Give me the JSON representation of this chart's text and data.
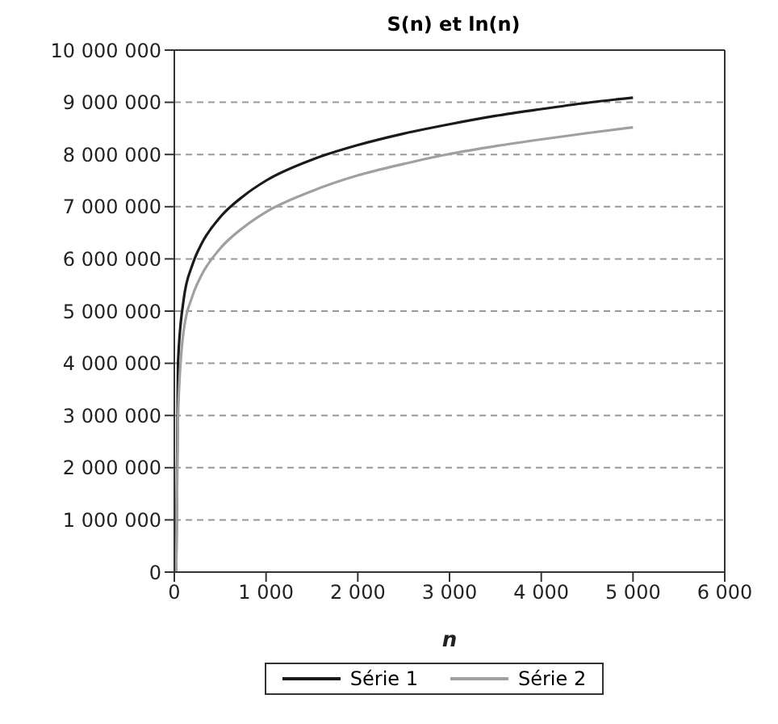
{
  "chart_data": {
    "type": "line",
    "title": "S(n) et ln(n)",
    "xlabel": "n",
    "x": [
      20,
      40,
      100,
      200,
      300,
      500,
      750,
      1000,
      1500,
      2000,
      2500,
      3000,
      3500,
      4000,
      4500,
      5000
    ],
    "series": [
      {
        "name": "Série 1",
        "color": "#1a1a1a",
        "values": [
          0,
          4000000,
          5200000,
          5900000,
          6300000,
          6800000,
          7200000,
          7500000,
          7900000,
          8180000,
          8400000,
          8580000,
          8740000,
          8870000,
          8990000,
          9090000
        ]
      },
      {
        "name": "Série 2",
        "color": "#a0a0a0",
        "values": [
          0,
          3000000,
          4600000,
          5300000,
          5700000,
          6200000,
          6600000,
          6900000,
          7300000,
          7600000,
          7820000,
          8010000,
          8160000,
          8290000,
          8410000,
          8520000
        ]
      }
    ],
    "xlim": [
      0,
      6000
    ],
    "ylim": [
      0,
      10000000
    ],
    "xticks": [
      0,
      {
        "value": 1000,
        "label": "1 000"
      },
      {
        "value": 2000,
        "label": "2 000"
      },
      {
        "value": 3000,
        "label": "3 000"
      },
      {
        "value": 4000,
        "label": "4 000"
      },
      {
        "value": 5000,
        "label": "5 000"
      },
      {
        "value": 6000,
        "label": "6 000"
      }
    ],
    "yticks": [
      0,
      {
        "value": 1000000,
        "label": "1 000 000"
      },
      {
        "value": 2000000,
        "label": "2 000 000"
      },
      {
        "value": 3000000,
        "label": "3 000 000"
      },
      {
        "value": 4000000,
        "label": "4 000 000"
      },
      {
        "value": 5000000,
        "label": "5 000 000"
      },
      {
        "value": 6000000,
        "label": "6 000 000"
      },
      {
        "value": 7000000,
        "label": "7 000 000"
      },
      {
        "value": 8000000,
        "label": "8 000 000"
      },
      {
        "value": 9000000,
        "label": "9 000 000"
      },
      {
        "value": 10000000,
        "label": "10 000 000"
      }
    ],
    "grid": "y",
    "legend": "bottom",
    "marker": "none",
    "line_style": "solid"
  }
}
